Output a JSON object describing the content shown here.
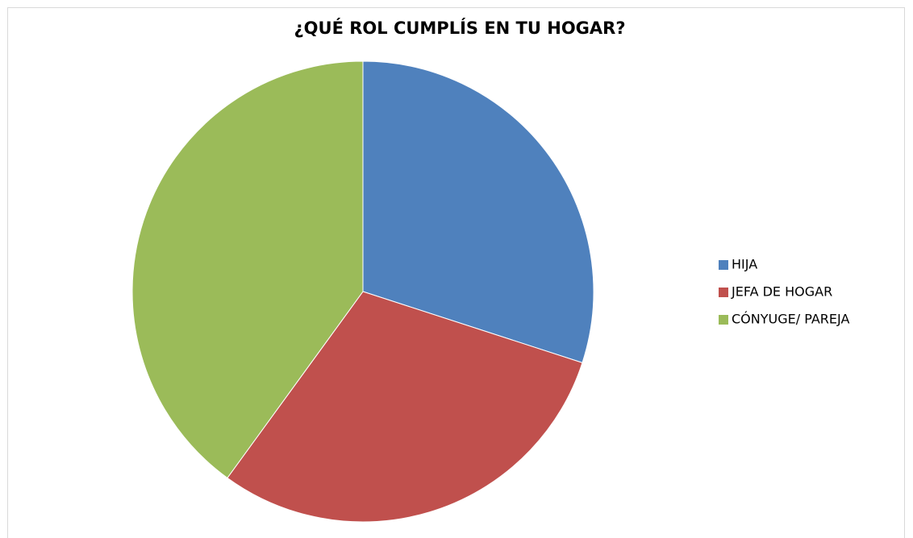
{
  "chart_data": {
    "type": "pie",
    "title": "¿QUÉ ROL CUMPLÍS EN TU HOGAR?",
    "categories": [
      "HIJA",
      "JEFA DE HOGAR",
      "CÓNYUGE/ PAREJA"
    ],
    "values": [
      30,
      30,
      40
    ],
    "colors": [
      "#4f81bd",
      "#c0504d",
      "#9bbb59"
    ],
    "legend": "right"
  }
}
